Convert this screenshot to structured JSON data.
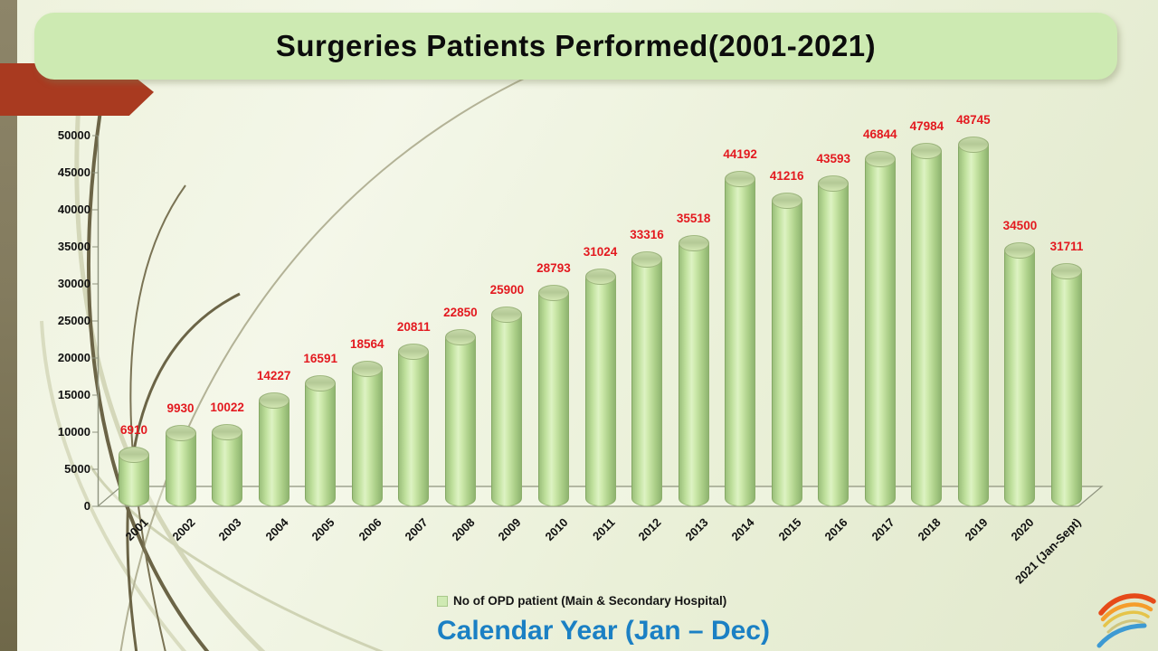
{
  "slide": {
    "title": "Surgeries Patients Performed(2001-2021)"
  },
  "chart_data": {
    "type": "bar",
    "style": "3d-cylinder",
    "title": "Surgeries Patients Performed(2001-2021)",
    "categories": [
      "2001",
      "2002",
      "2003",
      "2004",
      "2005",
      "2006",
      "2007",
      "2008",
      "2009",
      "2010",
      "2011",
      "2012",
      "2013",
      "2014",
      "2015",
      "2016",
      "2017",
      "2018",
      "2019",
      "2020",
      "2021 (Jan-Sept)"
    ],
    "values": [
      6910,
      9930,
      10022,
      14227,
      16591,
      18564,
      20811,
      22850,
      25900,
      28793,
      31024,
      33316,
      35518,
      44192,
      41216,
      43593,
      46844,
      47984,
      48745,
      34500,
      31711
    ],
    "series_name": "No of OPD patient (Main & Secondary Hospital)",
    "xlabel": "Calendar Year (Jan – Dec)",
    "ylabel": "",
    "ylim": [
      0,
      50000
    ],
    "yticks": [
      0,
      5000,
      10000,
      15000,
      20000,
      25000,
      30000,
      35000,
      40000,
      45000,
      50000
    ],
    "grid": false,
    "legend_position": "bottom",
    "data_label_color": "#e3191f",
    "bar_color": "#c7e6a5",
    "xlabel_color": "#1b80c4",
    "title_box_color": "#cdeab2",
    "arrow_color": "#a93a20"
  }
}
